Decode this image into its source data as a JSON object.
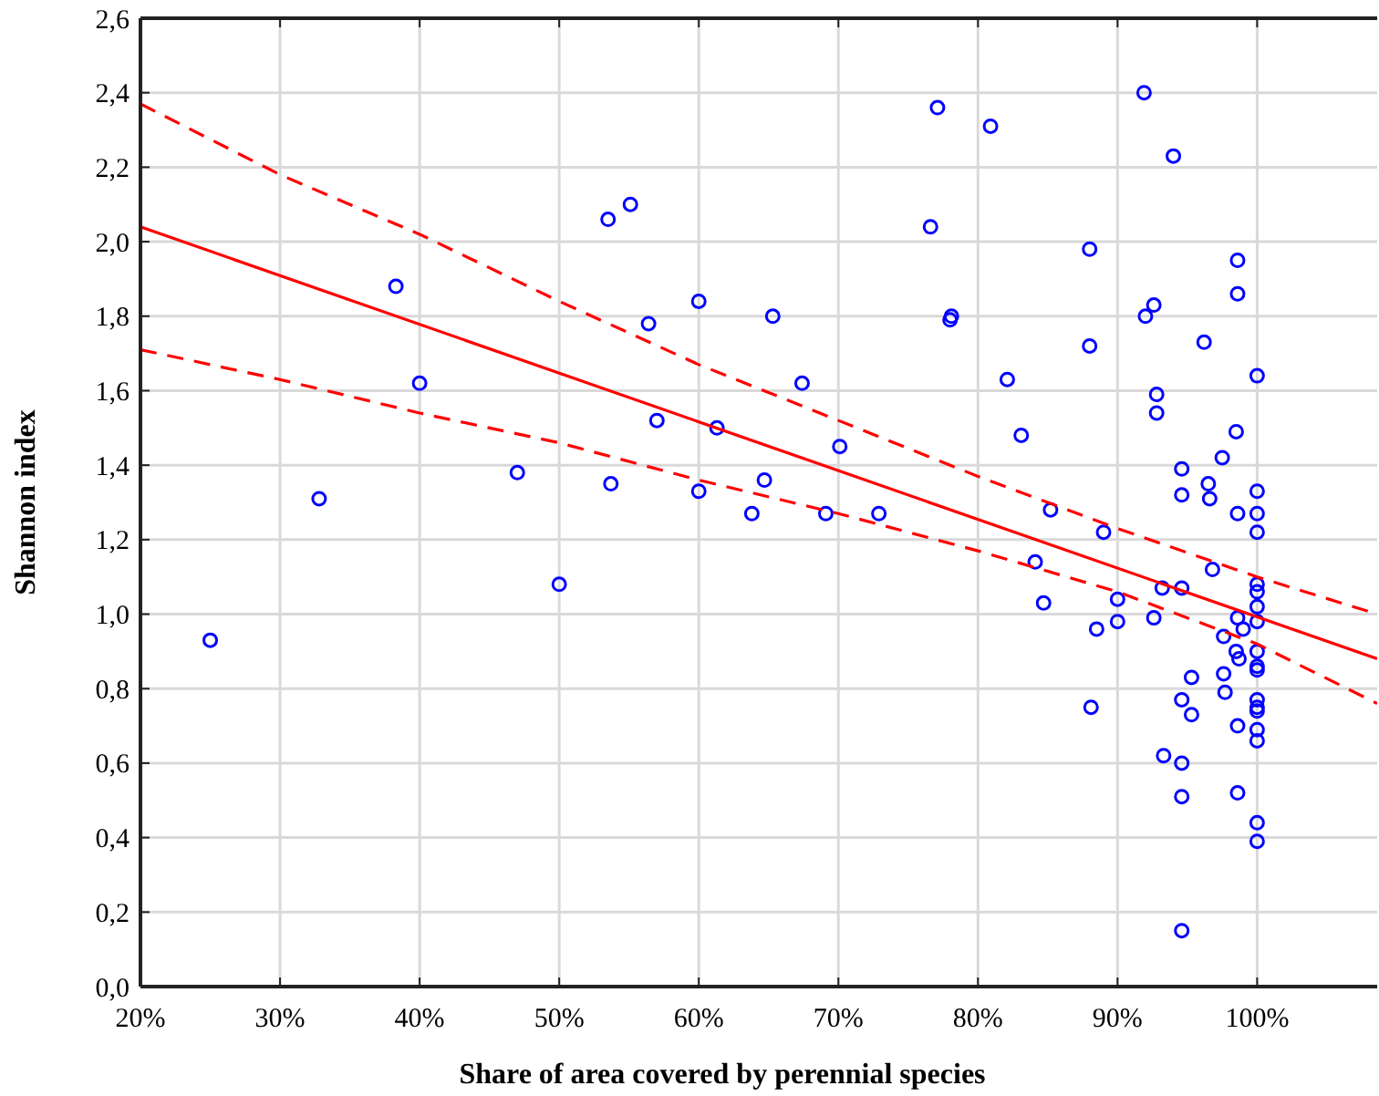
{
  "chart_data": {
    "type": "scatter",
    "xlabel": "Share of area covered by perennial species",
    "ylabel": "Shannon index",
    "xlim": [
      20,
      108.6
    ],
    "ylim": [
      0,
      2.6
    ],
    "xticks": [
      {
        "value": 20,
        "label": "20%"
      },
      {
        "value": 30,
        "label": "30%"
      },
      {
        "value": 40,
        "label": "40%"
      },
      {
        "value": 50,
        "label": "50%"
      },
      {
        "value": 60,
        "label": "60%"
      },
      {
        "value": 70,
        "label": "70%"
      },
      {
        "value": 80,
        "label": "80%"
      },
      {
        "value": 90,
        "label": "90%"
      },
      {
        "value": 100,
        "label": "100%"
      }
    ],
    "yticks": [
      {
        "value": 0,
        "label": "0,0"
      },
      {
        "value": 0.2,
        "label": "0,2"
      },
      {
        "value": 0.4,
        "label": "0,4"
      },
      {
        "value": 0.6,
        "label": "0,6"
      },
      {
        "value": 0.8,
        "label": "0,8"
      },
      {
        "value": 1,
        "label": "1,0"
      },
      {
        "value": 1.2,
        "label": "1,2"
      },
      {
        "value": 1.4,
        "label": "1,4"
      },
      {
        "value": 1.6,
        "label": "1,6"
      },
      {
        "value": 1.8,
        "label": "1,8"
      },
      {
        "value": 2,
        "label": "2,0"
      },
      {
        "value": 2.2,
        "label": "2,2"
      },
      {
        "value": 2.4,
        "label": "2,4"
      },
      {
        "value": 2.6,
        "label": "2,6"
      }
    ],
    "grid": true,
    "series": [
      {
        "color": "#0000ff",
        "marker": "circle",
        "x": [
          25,
          32.8,
          38.3,
          40,
          47,
          50,
          53.5,
          55.1,
          53.7,
          56.4,
          57,
          60,
          60,
          61.3,
          63.8,
          64.7,
          65.3,
          67.4,
          69.1,
          70.1,
          72.9,
          76.6,
          77.1,
          78,
          78.1,
          80.9,
          82.1,
          83.1,
          84.1,
          84.7,
          85.2,
          88,
          88,
          88.1,
          88.5,
          89,
          90,
          90,
          91.9,
          92,
          92.6,
          92.8,
          92.8,
          92.6,
          93.2,
          93.3,
          94,
          94.6,
          94.6,
          94.6,
          94.6,
          94.6,
          94.6,
          94.6,
          95.3,
          95.3,
          96.2,
          96.5,
          96.6,
          96.8,
          97.5,
          97.6,
          97.6,
          97.7,
          98.6,
          98.6,
          98.5,
          98.6,
          98.6,
          98.5,
          98.7,
          98.6,
          98.6,
          99,
          100,
          100,
          100,
          100,
          100,
          100,
          100,
          100,
          100,
          100,
          100,
          100,
          100,
          100,
          100,
          100,
          100,
          100
        ],
        "values": [
          0.93,
          1.31,
          1.88,
          1.62,
          1.38,
          1.08,
          2.06,
          2.1,
          1.35,
          1.78,
          1.52,
          1.84,
          1.33,
          1.5,
          1.27,
          1.36,
          1.8,
          1.62,
          1.27,
          1.45,
          1.27,
          2.04,
          2.36,
          1.79,
          1.8,
          2.31,
          1.63,
          1.48,
          1.14,
          1.03,
          1.28,
          1.98,
          1.72,
          0.75,
          0.96,
          1.22,
          1.04,
          0.98,
          2.4,
          1.8,
          1.83,
          1.59,
          1.54,
          0.99,
          1.07,
          0.62,
          2.23,
          1.39,
          1.32,
          0.77,
          0.6,
          0.51,
          0.15,
          1.07,
          0.83,
          0.73,
          1.73,
          1.35,
          1.31,
          1.12,
          1.42,
          0.94,
          0.84,
          0.79,
          1.95,
          1.86,
          1.49,
          1.27,
          0.99,
          0.9,
          0.88,
          0.7,
          0.52,
          0.96,
          1.64,
          1.33,
          1.27,
          1.22,
          1.08,
          1.06,
          1.02,
          0.98,
          0.9,
          0.86,
          0.85,
          0.77,
          0.75,
          0.74,
          0.69,
          0.66,
          0.44,
          0.39
        ]
      },
      {
        "type": "line",
        "color": "#ff0000",
        "marker": "none",
        "line_style": "solid",
        "x": [
          20,
          108.6
        ],
        "values": [
          2.04,
          0.88
        ]
      },
      {
        "type": "line",
        "color": "#ff0000",
        "marker": "none",
        "line_style": "dashed",
        "x": [
          20,
          30,
          40,
          50,
          60,
          70,
          80,
          90,
          100,
          108.6
        ],
        "values": [
          2.37,
          2.18,
          2.02,
          1.84,
          1.67,
          1.52,
          1.37,
          1.23,
          1.1,
          1.0
        ]
      },
      {
        "type": "line",
        "color": "#ff0000",
        "marker": "none",
        "line_style": "dashed",
        "x": [
          20,
          30,
          40,
          50,
          60,
          70,
          80,
          90,
          100,
          108.6
        ],
        "values": [
          1.71,
          1.63,
          1.54,
          1.46,
          1.36,
          1.27,
          1.17,
          1.06,
          0.92,
          0.76
        ]
      }
    ]
  }
}
